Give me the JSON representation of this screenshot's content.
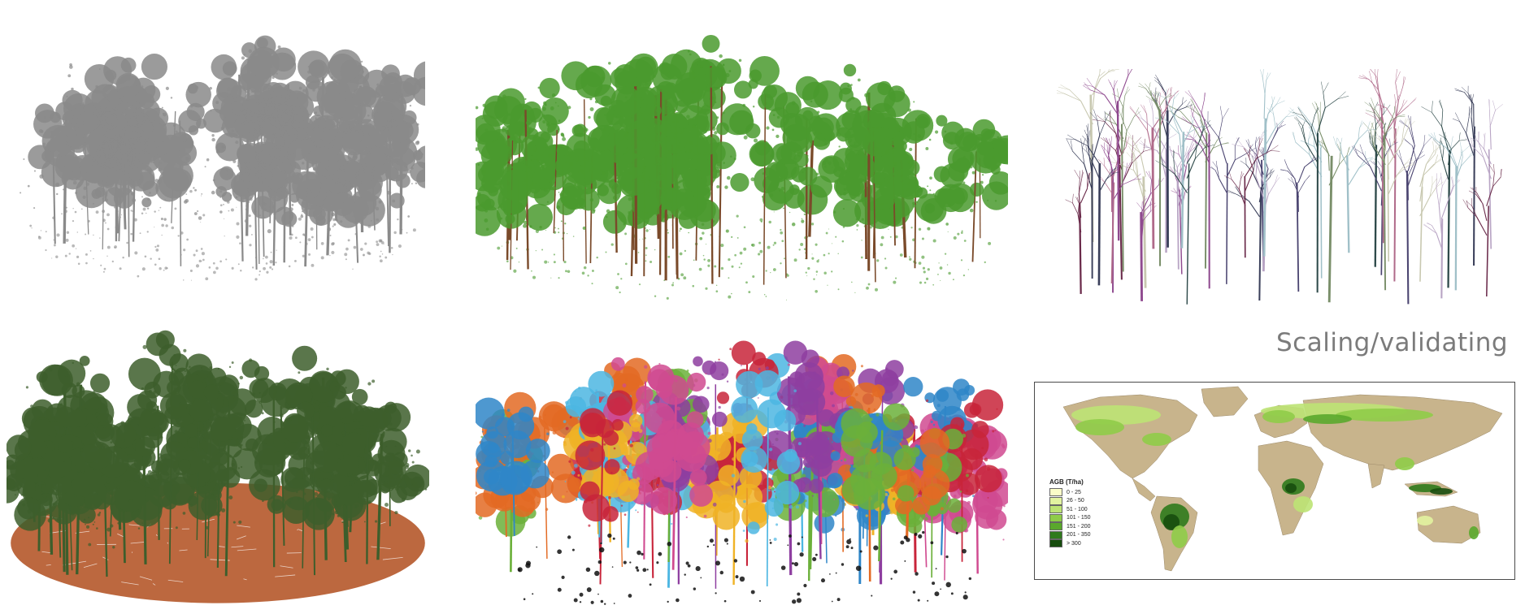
{
  "caption": "Scaling/validating",
  "panels": {
    "raw_point_cloud": {
      "color": "#8a8a8a"
    },
    "wood_leaf_separation": {
      "leaf_color": "#4a9a2e",
      "wood_color": "#7a4a2a"
    },
    "qsm_models": {
      "colors": [
        "#8f4a8f",
        "#3a3f5a",
        "#b8a4c4",
        "#7a8f6a",
        "#4a4470",
        "#a0c0c8",
        "#6a2a4a",
        "#c8c8b0",
        "#2e4a4a",
        "#b06a8a"
      ]
    },
    "ground_classification": {
      "vegetation_color": "#3d5e2c",
      "ground_color": "#b5582a"
    },
    "tree_segmentation": {
      "colors": [
        "#e36a23",
        "#f0b326",
        "#2f86c8",
        "#8e3ea0",
        "#c8243a",
        "#6bb03a",
        "#4cb6e2",
        "#d04a90"
      ],
      "understory_color": "#111111"
    }
  },
  "map": {
    "land_color": "#c8b48c",
    "legend": {
      "title": "AGB (T/ha)",
      "items": [
        {
          "label": "0 - 25",
          "color": "#fbfdc8"
        },
        {
          "label": "26 - 50",
          "color": "#e2f3a0"
        },
        {
          "label": "51 - 100",
          "color": "#bde374"
        },
        {
          "label": "101 - 150",
          "color": "#8fcc48"
        },
        {
          "label": "151 - 200",
          "color": "#5aa82c"
        },
        {
          "label": "201 - 350",
          "color": "#2f7a1c"
        },
        {
          "label": "> 300",
          "color": "#174d0e"
        }
      ]
    }
  }
}
